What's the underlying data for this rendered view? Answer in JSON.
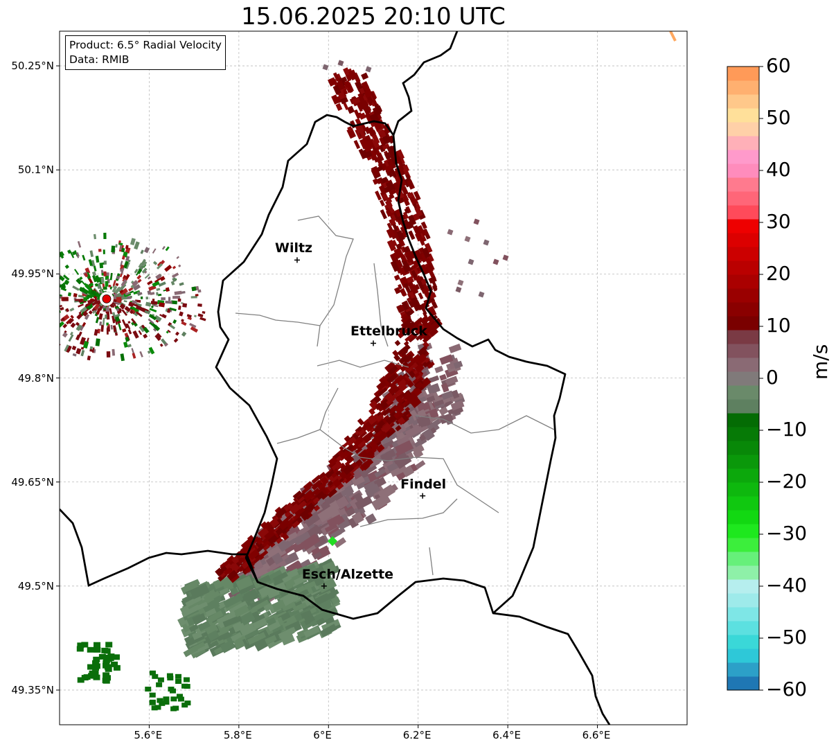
{
  "title": "15.06.2025 20:10 UTC",
  "info": {
    "product": "Product: 6.5° Radial Velocity",
    "data": "Data: RMIB"
  },
  "map": {
    "lon_range": [
      5.4,
      6.8
    ],
    "lat_range": [
      49.3,
      50.3
    ],
    "x_ticks": [
      "5.6°E",
      "5.8°E",
      "6°E",
      "6.2°E",
      "6.4°E",
      "6.6°E"
    ],
    "y_ticks": [
      "50.25°N",
      "50.1°N",
      "49.95°N",
      "49.8°N",
      "49.65°N",
      "49.5°N",
      "49.35°N"
    ],
    "grid": true
  },
  "cities": [
    {
      "name": "Wiltz",
      "lon": 5.93,
      "lat": 49.97
    },
    {
      "name": "Ettelbruck",
      "lon": 6.1,
      "lat": 49.85
    },
    {
      "name": "Findel",
      "lon": 6.21,
      "lat": 49.63
    },
    {
      "name": "Esch/Alzette",
      "lon": 5.99,
      "lat": 49.5
    }
  ],
  "radar_site": {
    "lon": 5.505,
    "lat": 49.914,
    "color": "#e00000"
  },
  "colorbar": {
    "label": "m/s",
    "min": -60,
    "max": 60,
    "ticks": [
      "60",
      "50",
      "40",
      "30",
      "20",
      "10",
      "0",
      "−10",
      "−20",
      "−30",
      "−40",
      "−50",
      "−60"
    ],
    "colors_bottom_to_top": [
      "#1f77b4",
      "#2ca0c8",
      "#2ec8d8",
      "#3ad8d8",
      "#5ce0e0",
      "#7ee6e6",
      "#9eeaea",
      "#b6eeee",
      "#8ef0a8",
      "#66f07a",
      "#3cee3c",
      "#1ee81e",
      "#12d812",
      "#10c810",
      "#0eb80e",
      "#0ca80c",
      "#0a980a",
      "#088808",
      "#067a06",
      "#046c04",
      "#5e8060",
      "#6a8a6a",
      "#807a7a",
      "#8a6a74",
      "#82525e",
      "#7a3a44",
      "#7a0000",
      "#8a0000",
      "#9a0000",
      "#aa0000",
      "#ba0000",
      "#cc0000",
      "#dc0000",
      "#ee0000",
      "#ff4a5a",
      "#ff6678",
      "#ff7a8e",
      "#ff8cbc",
      "#ff9acb",
      "#ffb0b8",
      "#ffd0a8",
      "#ffe09a",
      "#ffc88a",
      "#ffb070",
      "#ff9a58"
    ]
  }
}
